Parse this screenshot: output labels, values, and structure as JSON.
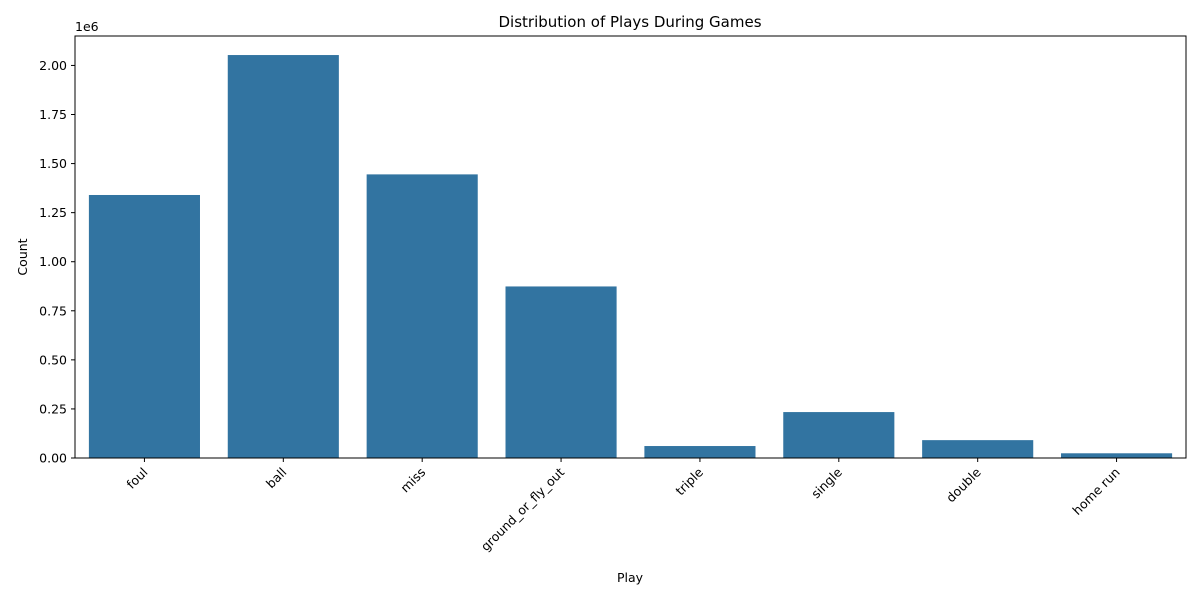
{
  "chart_data": {
    "type": "bar",
    "title": "Distribution of Plays During Games",
    "xlabel": "Play",
    "ylabel": "Count",
    "y_offset_text": "1e6",
    "categories": [
      "foul",
      "ball",
      "miss",
      "ground_or_fly_out",
      "triple",
      "single",
      "double",
      "home run"
    ],
    "values": [
      1340000,
      2053000,
      1445000,
      874000,
      61000,
      234000,
      91000,
      24000
    ],
    "ylim": [
      0,
      2150000
    ],
    "y_ticks": [
      0,
      250000,
      500000,
      750000,
      1000000,
      1250000,
      1500000,
      1750000,
      2000000
    ],
    "y_tick_labels": [
      "0.00",
      "0.25",
      "0.50",
      "0.75",
      "1.00",
      "1.25",
      "1.50",
      "1.75",
      "2.00"
    ],
    "bar_color": "#3274a1",
    "x_tick_rotation": "45 degrees, right-aligned",
    "grid": false,
    "legend": "none"
  }
}
